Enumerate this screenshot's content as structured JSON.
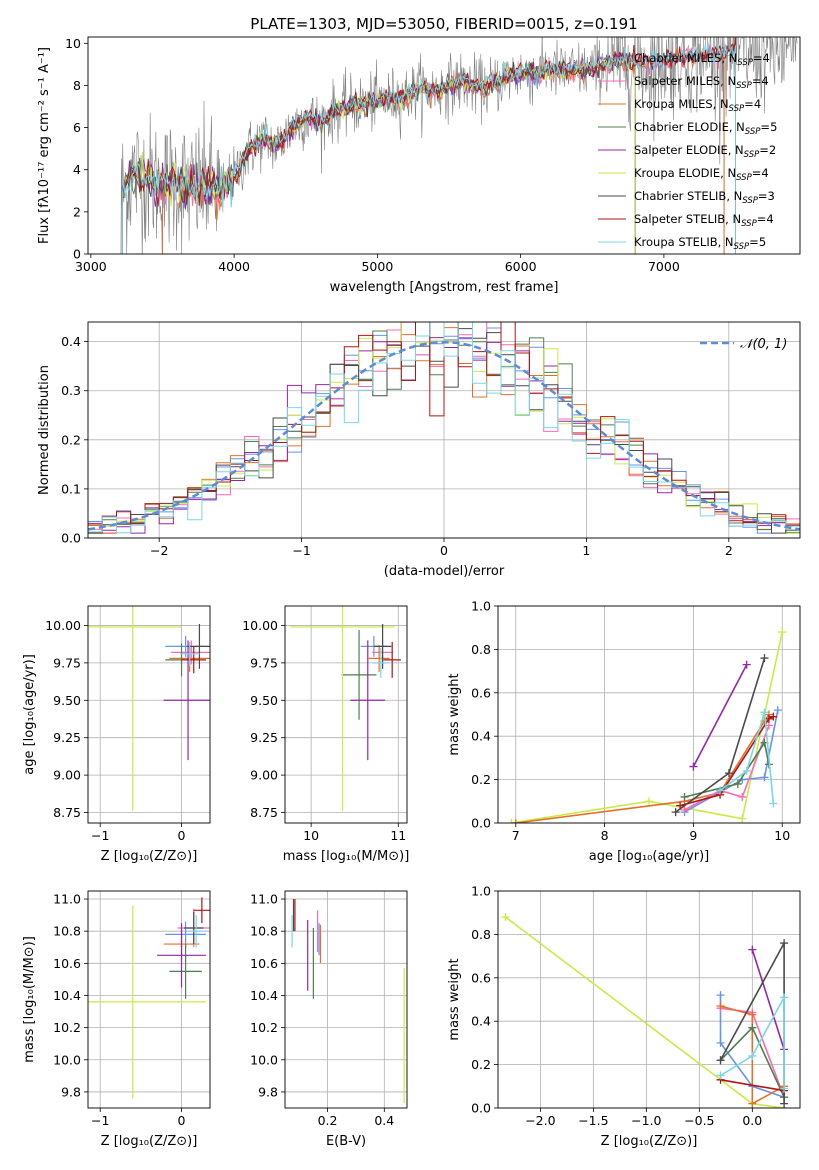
{
  "colors": {
    "chabrier_miles": "#6495ED",
    "salpeter_miles": "#FF69B4",
    "kroupa_miles": "#E3702A",
    "chabrier_elodie": "#4F7F4F",
    "salpeter_elodie": "#9327A8",
    "kroupa_elodie": "#C8EB45",
    "chabrier_stelib": "#4A4A4A",
    "salpeter_stelib": "#B01515",
    "kroupa_stelib": "#7AD6E6",
    "data": "#808080",
    "normal": "#5B8BD9"
  },
  "chart_data": [
    {
      "id": "spectrum",
      "type": "line",
      "title": "PLATE=1303, MJD=53050, FIBERID=0015, z=0.191",
      "xlabel": "wavelength [Angstrom, rest frame]",
      "ylabel": "Flux [fλ10⁻¹⁷ erg cm⁻² s⁻¹ A⁻¹]",
      "xlim": [
        2980,
        7950
      ],
      "ylim": [
        0,
        10.3
      ],
      "xticks": [
        "3000",
        "4000",
        "5000",
        "6000",
        "7000"
      ],
      "yticks": [
        "0",
        "2",
        "4",
        "6",
        "8",
        "10"
      ],
      "legend_position": "top-right",
      "data_series": {
        "name": "",
        "x_range": [
          3210,
          7930
        ],
        "note": ""
      },
      "model_x": [
        3220,
        3300,
        3400,
        3500,
        3600,
        3700,
        3800,
        3900,
        4000,
        4100,
        4200,
        4300,
        4400,
        4500,
        4600,
        4700,
        4800,
        4900,
        5000,
        5100,
        5200,
        5300,
        5400,
        5500,
        5600,
        5700,
        5800,
        5900,
        6000,
        6100,
        6200,
        6300,
        6400,
        6500,
        6600,
        6700,
        6800,
        6900,
        7000,
        7100,
        7200,
        7300,
        7400,
        7500
      ],
      "model_y": [
        3.0,
        3.8,
        3.5,
        3.2,
        3.4,
        3.0,
        3.3,
        3.0,
        3.6,
        4.9,
        5.5,
        5.1,
        6.0,
        6.5,
        6.2,
        6.8,
        7.0,
        7.1,
        7.3,
        7.4,
        7.5,
        7.9,
        7.7,
        8.0,
        8.2,
        7.9,
        8.0,
        8.4,
        8.6,
        8.5,
        8.8,
        8.6,
        8.7,
        8.8,
        9.0,
        9.2,
        9.1,
        9.0,
        9.2,
        9.3,
        9.4,
        9.4,
        9.5,
        9.6
      ],
      "series": [
        {
          "name": "Chabrier MILES, N",
          "nssp": "4",
          "color_key": "chabrier_miles",
          "cut_low": 3500,
          "cut_high": 7420
        },
        {
          "name": "Salpeter MILES, N",
          "nssp": "4",
          "color_key": "salpeter_miles",
          "cut_low": 3500,
          "cut_high": 7420
        },
        {
          "name": "Kroupa MILES, N",
          "nssp": "4",
          "color_key": "kroupa_miles",
          "cut_low": 3500,
          "cut_high": 7420
        },
        {
          "name": "Chabrier ELODIE, N",
          "nssp": "5",
          "color_key": "chabrier_elodie",
          "cut_low": 3220,
          "cut_high": 6800
        },
        {
          "name": "Salpeter ELODIE, N",
          "nssp": "2",
          "color_key": "salpeter_elodie",
          "cut_low": 3220,
          "cut_high": 6800
        },
        {
          "name": "Kroupa ELODIE, N",
          "nssp": "4",
          "color_key": "kroupa_elodie",
          "cut_low": 3220,
          "cut_high": 6800
        },
        {
          "name": "Chabrier STELIB, N",
          "nssp": "3",
          "color_key": "chabrier_stelib",
          "cut_low": 3220,
          "cut_high": 7500
        },
        {
          "name": "Salpeter STELIB, N",
          "nssp": "4",
          "color_key": "salpeter_stelib",
          "cut_low": 3220,
          "cut_high": 7500
        },
        {
          "name": "Kroupa STELIB, N",
          "nssp": "5",
          "color_key": "kroupa_stelib",
          "cut_low": 3220,
          "cut_high": 7500
        }
      ],
      "nssp_subscript": "SSP"
    },
    {
      "id": "residuals",
      "type": "line",
      "xlabel": "(data-model)/error",
      "ylabel": "Normed distribution",
      "xlim": [
        -2.5,
        2.5
      ],
      "ylim": [
        0,
        0.44
      ],
      "xticks": [
        "−2",
        "−1",
        "0",
        "1",
        "2"
      ],
      "yticks": [
        "0.0",
        "0.1",
        "0.2",
        "0.3",
        "0.4"
      ],
      "grid": true,
      "legend_position": "top-right",
      "normal_label": "𝒩(0, 1)",
      "bin_width": 0.1
    },
    {
      "id": "age-vs-Z",
      "type": "scatter",
      "xlabel": "Z [log₁₀(Z/Z⊙)]",
      "ylabel": "age  [log₁₀(age/yr)]",
      "xlim": [
        -1.15,
        0.35
      ],
      "ylim": [
        8.68,
        10.13
      ],
      "xticks": [
        "−1",
        "0"
      ],
      "yticks": [
        "8.75",
        "9.00",
        "9.25",
        "9.50",
        "9.75",
        "10.00"
      ],
      "points": [
        {
          "color_key": "chabrier_miles",
          "x": 0.05,
          "y": 9.86,
          "xerr": 0.25,
          "yerr": 0.07
        },
        {
          "color_key": "salpeter_miles",
          "x": 0.12,
          "y": 9.82,
          "xerr": 0.25,
          "yerr": 0.08
        },
        {
          "color_key": "kroupa_miles",
          "x": 0.1,
          "y": 9.78,
          "xerr": 0.25,
          "yerr": 0.09
        },
        {
          "color_key": "chabrier_elodie",
          "x": 0.0,
          "y": 9.77,
          "xerr": 0.2,
          "yerr": 0.11
        },
        {
          "color_key": "salpeter_elodie",
          "x": 0.08,
          "y": 9.5,
          "xerr": 0.3,
          "yerr": 0.4
        },
        {
          "color_key": "kroupa_elodie",
          "x": -0.6,
          "y": 9.99,
          "xerr": 0.6,
          "yerr": 1.23
        },
        {
          "color_key": "chabrier_stelib",
          "x": 0.22,
          "y": 9.86,
          "xerr": 0.15,
          "yerr": 0.15
        },
        {
          "color_key": "salpeter_stelib",
          "x": 0.15,
          "y": 9.77,
          "xerr": 0.15,
          "yerr": 0.09
        },
        {
          "color_key": "kroupa_stelib",
          "x": 0.1,
          "y": 9.81,
          "xerr": 0.12,
          "yerr": 0.08
        }
      ]
    },
    {
      "id": "age-vs-mass",
      "type": "scatter",
      "xlabel": "mass [log₁₀(M/M⊙)]",
      "ylabel": "",
      "xlim": [
        9.7,
        11.1
      ],
      "ylim": [
        8.68,
        10.13
      ],
      "xticks": [
        "10",
        "11"
      ],
      "yticks": [
        "8.75",
        "9.00",
        "9.25",
        "9.50",
        "9.75",
        "10.00"
      ],
      "points": [
        {
          "color_key": "chabrier_miles",
          "x": 10.72,
          "y": 9.86,
          "xerr": 0.15,
          "yerr": 0.07
        },
        {
          "color_key": "salpeter_miles",
          "x": 10.82,
          "y": 9.82,
          "xerr": 0.12,
          "yerr": 0.08
        },
        {
          "color_key": "kroupa_miles",
          "x": 10.78,
          "y": 9.78,
          "xerr": 0.12,
          "yerr": 0.09
        },
        {
          "color_key": "chabrier_elodie",
          "x": 10.55,
          "y": 9.67,
          "xerr": 0.2,
          "yerr": 0.3
        },
        {
          "color_key": "salpeter_elodie",
          "x": 10.65,
          "y": 9.5,
          "xerr": 0.2,
          "yerr": 0.4
        },
        {
          "color_key": "kroupa_elodie",
          "x": 10.36,
          "y": 9.99,
          "xerr": 0.6,
          "yerr": 1.23
        },
        {
          "color_key": "chabrier_stelib",
          "x": 10.82,
          "y": 9.86,
          "xerr": 0.1,
          "yerr": 0.15
        },
        {
          "color_key": "salpeter_stelib",
          "x": 10.93,
          "y": 9.77,
          "xerr": 0.1,
          "yerr": 0.12
        },
        {
          "color_key": "kroupa_stelib",
          "x": 10.8,
          "y": 9.75,
          "xerr": 0.1,
          "yerr": 0.1
        }
      ]
    },
    {
      "id": "weight-vs-age",
      "type": "line",
      "xlabel": "age  [log₁₀(age/yr)]",
      "ylabel": "mass weight",
      "xlim": [
        6.8,
        10.2
      ],
      "ylim": [
        0,
        1.0
      ],
      "xticks": [
        "7",
        "8",
        "9",
        "10"
      ],
      "yticks": [
        "0.0",
        "0.2",
        "0.4",
        "0.6",
        "0.8",
        "1.0"
      ],
      "grid": true,
      "series": [
        {
          "color_key": "kroupa_elodie",
          "points": [
            [
              6.95,
              0.0
            ],
            [
              8.5,
              0.1
            ],
            [
              9.55,
              0.02
            ],
            [
              9.8,
              0.5
            ],
            [
              10.0,
              0.88
            ]
          ]
        },
        {
          "color_key": "kroupa_miles",
          "points": [
            [
              7.0,
              0.0
            ],
            [
              8.9,
              0.1
            ],
            [
              9.3,
              0.14
            ],
            [
              9.8,
              0.47
            ],
            [
              9.85,
              0.5
            ]
          ]
        },
        {
          "color_key": "chabrier_miles",
          "points": [
            [
              8.9,
              0.05
            ],
            [
              9.55,
              0.2
            ],
            [
              9.8,
              0.21
            ],
            [
              9.95,
              0.52
            ]
          ]
        },
        {
          "color_key": "salpeter_miles",
          "points": [
            [
              8.9,
              0.06
            ],
            [
              9.3,
              0.15
            ],
            [
              9.55,
              0.12
            ],
            [
              9.85,
              0.45
            ]
          ]
        },
        {
          "color_key": "chabrier_elodie",
          "points": [
            [
              8.9,
              0.12
            ],
            [
              9.5,
              0.18
            ],
            [
              9.8,
              0.37
            ],
            [
              9.85,
              0.27
            ]
          ]
        },
        {
          "color_key": "salpeter_elodie",
          "points": [
            [
              9.0,
              0.26
            ],
            [
              9.6,
              0.73
            ]
          ]
        },
        {
          "color_key": "chabrier_stelib",
          "points": [
            [
              8.8,
              0.05
            ],
            [
              9.4,
              0.23
            ],
            [
              9.8,
              0.76
            ]
          ]
        },
        {
          "color_key": "salpeter_stelib",
          "points": [
            [
              8.85,
              0.08
            ],
            [
              9.3,
              0.13
            ],
            [
              9.85,
              0.48
            ],
            [
              9.9,
              0.49
            ]
          ]
        },
        {
          "color_key": "kroupa_stelib",
          "points": [
            [
              9.3,
              0.15
            ],
            [
              9.6,
              0.24
            ],
            [
              9.8,
              0.51
            ],
            [
              9.9,
              0.09
            ]
          ]
        }
      ]
    },
    {
      "id": "mass-vs-Z",
      "type": "scatter",
      "xlabel": "Z [log₁₀(Z/Z⊙)]",
      "ylabel": "mass [log₁₀(M/M⊙)]",
      "xlim": [
        -1.15,
        0.35
      ],
      "ylim": [
        9.7,
        11.05
      ],
      "xticks": [
        "−1",
        "0"
      ],
      "yticks": [
        "9.8",
        "10.0",
        "10.2",
        "10.4",
        "10.6",
        "10.8",
        "11.0"
      ],
      "points": [
        {
          "color_key": "chabrier_miles",
          "x": 0.05,
          "y": 10.78,
          "xerr": 0.25,
          "yerr": 0.08
        },
        {
          "color_key": "salpeter_miles",
          "x": 0.15,
          "y": 10.82,
          "xerr": 0.2,
          "yerr": 0.12
        },
        {
          "color_key": "kroupa_miles",
          "x": 0.0,
          "y": 10.72,
          "xerr": 0.22,
          "yerr": 0.1
        },
        {
          "color_key": "chabrier_elodie",
          "x": 0.05,
          "y": 10.55,
          "xerr": 0.2,
          "yerr": 0.17
        },
        {
          "color_key": "salpeter_elodie",
          "x": 0.0,
          "y": 10.65,
          "xerr": 0.3,
          "yerr": 0.2
        },
        {
          "color_key": "kroupa_elodie",
          "x": -0.6,
          "y": 10.36,
          "xerr": 0.9,
          "yerr": 0.6
        },
        {
          "color_key": "chabrier_stelib",
          "x": 0.15,
          "y": 10.82,
          "xerr": 0.12,
          "yerr": 0.1
        },
        {
          "color_key": "salpeter_stelib",
          "x": 0.25,
          "y": 10.93,
          "xerr": 0.1,
          "yerr": 0.08
        },
        {
          "color_key": "kroupa_stelib",
          "x": 0.18,
          "y": 10.8,
          "xerr": 0.12,
          "yerr": 0.1
        }
      ]
    },
    {
      "id": "mass-vs-ebv",
      "type": "scatter",
      "xlabel": "E(B-V)",
      "ylabel": "",
      "xlim": [
        0.05,
        0.48
      ],
      "ylim": [
        9.7,
        11.05
      ],
      "xticks": [
        "0.2",
        "0.4"
      ],
      "yticks": [
        "9.8",
        "10.0",
        "10.2",
        "10.4",
        "10.6",
        "10.8",
        "11.0"
      ],
      "points": [
        {
          "color_key": "chabrier_miles",
          "x": 0.17,
          "y": 10.75,
          "xerr": 0,
          "yerr": 0.1
        },
        {
          "color_key": "salpeter_miles",
          "x": 0.165,
          "y": 10.8,
          "xerr": 0,
          "yerr": 0.13
        },
        {
          "color_key": "kroupa_miles",
          "x": 0.175,
          "y": 10.72,
          "xerr": 0,
          "yerr": 0.12
        },
        {
          "color_key": "chabrier_elodie",
          "x": 0.15,
          "y": 10.6,
          "xerr": 0,
          "yerr": 0.22
        },
        {
          "color_key": "salpeter_elodie",
          "x": 0.13,
          "y": 10.65,
          "xerr": 0,
          "yerr": 0.22
        },
        {
          "color_key": "kroupa_elodie",
          "x": 0.47,
          "y": 10.15,
          "xerr": 0,
          "yerr": 0.42
        },
        {
          "color_key": "chabrier_stelib",
          "x": 0.08,
          "y": 10.9,
          "xerr": 0,
          "yerr": 0.1
        },
        {
          "color_key": "salpeter_stelib",
          "x": 0.085,
          "y": 10.9,
          "xerr": 0,
          "yerr": 0.1
        },
        {
          "color_key": "kroupa_stelib",
          "x": 0.075,
          "y": 10.8,
          "xerr": 0,
          "yerr": 0.1
        }
      ]
    },
    {
      "id": "weight-vs-Z",
      "type": "line",
      "xlabel": "Z [log₁₀(Z/Z⊙)]",
      "ylabel": "mass weight",
      "xlim": [
        -2.4,
        0.45
      ],
      "ylim": [
        0,
        1.0
      ],
      "xticks": [
        "−2.0",
        "−1.5",
        "−1.0",
        "−0.5",
        "0.0"
      ],
      "yticks": [
        "0.0",
        "0.2",
        "0.4",
        "0.6",
        "0.8",
        "1.0"
      ],
      "grid": true,
      "series": [
        {
          "color_key": "kroupa_elodie",
          "points": [
            [
              -2.33,
              0.88
            ],
            [
              0.0,
              0.02
            ],
            [
              0.3,
              0.0
            ]
          ]
        },
        {
          "color_key": "chabrier_miles",
          "points": [
            [
              -0.3,
              0.52
            ],
            [
              -0.3,
              0.3
            ],
            [
              0.0,
              0.1
            ],
            [
              0.3,
              0.05
            ]
          ]
        },
        {
          "color_key": "salpeter_miles",
          "points": [
            [
              -0.3,
              0.46
            ],
            [
              0.0,
              0.44
            ],
            [
              0.3,
              0.05
            ]
          ]
        },
        {
          "color_key": "kroupa_miles",
          "points": [
            [
              -0.3,
              0.47
            ],
            [
              0.0,
              0.43
            ],
            [
              0.0,
              0.02
            ],
            [
              0.3,
              0.1
            ]
          ]
        },
        {
          "color_key": "chabrier_elodie",
          "points": [
            [
              -0.3,
              0.22
            ],
            [
              0.0,
              0.37
            ],
            [
              0.3,
              0.05
            ]
          ]
        },
        {
          "color_key": "salpeter_elodie",
          "points": [
            [
              0.0,
              0.73
            ],
            [
              0.3,
              0.27
            ]
          ]
        },
        {
          "color_key": "chabrier_stelib",
          "points": [
            [
              -0.3,
              0.22
            ],
            [
              0.3,
              0.76
            ],
            [
              0.3,
              0.02
            ]
          ]
        },
        {
          "color_key": "salpeter_stelib",
          "points": [
            [
              -0.3,
              0.13
            ],
            [
              0.3,
              0.08
            ]
          ]
        },
        {
          "color_key": "kroupa_stelib",
          "points": [
            [
              -0.3,
              0.15
            ],
            [
              0.0,
              0.24
            ],
            [
              0.3,
              0.51
            ],
            [
              0.3,
              0.09
            ]
          ]
        }
      ]
    }
  ]
}
